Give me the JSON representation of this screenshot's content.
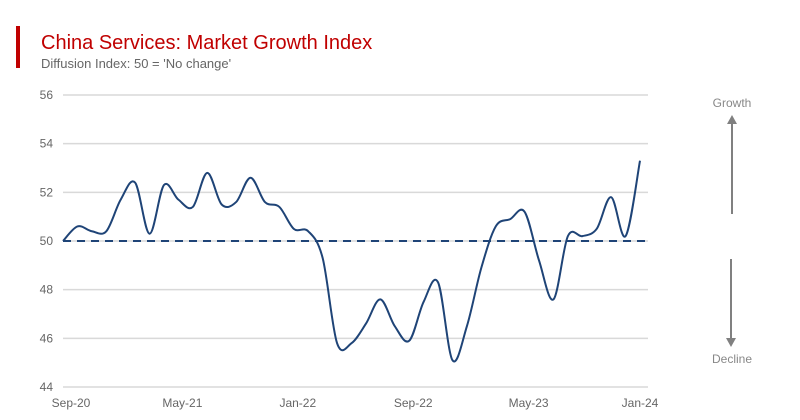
{
  "title": "China Services: Market Growth Index",
  "subtitle": "Diffusion Index: 50 = 'No change'",
  "colors": {
    "title": "#c00000",
    "line": "#1f4477",
    "grid": "#d9d9d9",
    "arrow": "#808080"
  },
  "side_labels": {
    "up": "Growth",
    "down": "Decline"
  },
  "chart_data": {
    "type": "line",
    "title": "China Services: Market Growth Index",
    "subtitle": "Diffusion Index: 50 = 'No change'",
    "x_start": "Sep-20",
    "x_end": "Jan-24",
    "x_frequency": "monthly",
    "x_tick_labels": [
      "Sep-20",
      "May-21",
      "Jan-22",
      "Sep-22",
      "May-23",
      "Jan-24"
    ],
    "y_tick_labels": [
      "44",
      "46",
      "48",
      "50",
      "52",
      "54",
      "56"
    ],
    "ylim": [
      44,
      56
    ],
    "grid": true,
    "reference_line": {
      "value": 50,
      "style": "dashed"
    },
    "series": [
      {
        "values": [
          50.0,
          50.6,
          50.4,
          50.4,
          51.7,
          52.4,
          50.3,
          52.3,
          51.7,
          51.4,
          52.8,
          51.5,
          51.6,
          52.6,
          51.6,
          51.4,
          50.5,
          50.4,
          49.3,
          45.8,
          45.8,
          46.6,
          47.6,
          46.5,
          45.9,
          47.5,
          48.3,
          45.1,
          46.5,
          48.9,
          50.6,
          50.9,
          51.2,
          49.2,
          47.6,
          50.2,
          50.2,
          50.5,
          51.8,
          50.2,
          53.3
        ]
      }
    ]
  }
}
